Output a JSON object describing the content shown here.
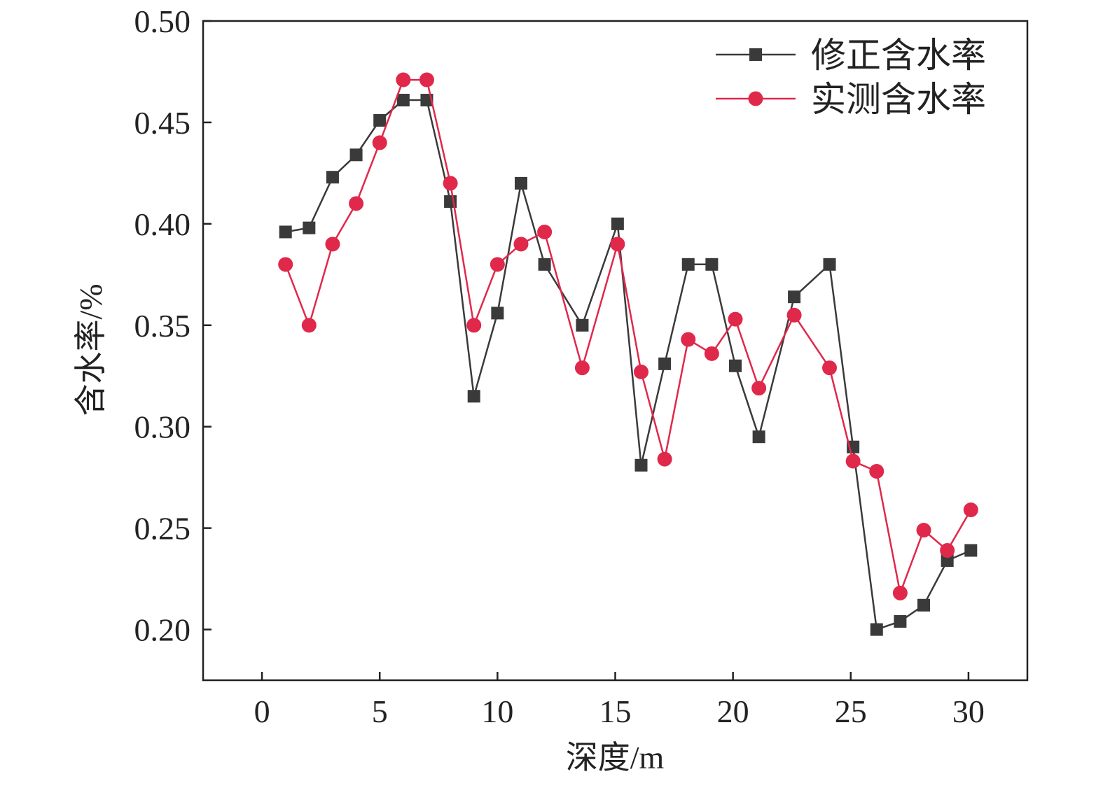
{
  "chart_data": {
    "type": "line",
    "xlabel": "深度/m",
    "ylabel": "含水率/%",
    "xlim": [
      -2.5,
      32.5
    ],
    "ylim": [
      0.175,
      0.5
    ],
    "xticks": [
      0,
      5,
      10,
      15,
      20,
      25,
      30
    ],
    "xtick_labels": [
      "0",
      "5",
      "10",
      "15",
      "20",
      "25",
      "30"
    ],
    "yticks": [
      0.2,
      0.25,
      0.3,
      0.35,
      0.4,
      0.45,
      0.5
    ],
    "ytick_labels": [
      "0.20",
      "0.25",
      "0.30",
      "0.35",
      "0.40",
      "0.45",
      "0.50"
    ],
    "grid": false,
    "legend_position": "top-right",
    "series": [
      {
        "name": "修正含水率",
        "color": "#3a3a3a",
        "marker": "square",
        "points": [
          [
            1,
            0.396
          ],
          [
            2,
            0.398
          ],
          [
            3,
            0.423
          ],
          [
            4,
            0.434
          ],
          [
            5,
            0.451
          ],
          [
            6,
            0.461
          ],
          [
            7,
            0.461
          ],
          [
            8,
            0.411
          ],
          [
            9,
            0.315
          ],
          [
            10,
            0.356
          ],
          [
            11,
            0.42
          ],
          [
            12,
            0.38
          ],
          [
            13.6,
            0.35
          ],
          [
            15.1,
            0.4
          ],
          [
            16.1,
            0.281
          ],
          [
            17.1,
            0.331
          ],
          [
            18.1,
            0.38
          ],
          [
            19.1,
            0.38
          ],
          [
            20.1,
            0.33
          ],
          [
            21.1,
            0.295
          ],
          [
            22.6,
            0.364
          ],
          [
            24.1,
            0.38
          ],
          [
            25.1,
            0.29
          ],
          [
            26.1,
            0.2
          ],
          [
            27.1,
            0.204
          ],
          [
            28.1,
            0.212
          ],
          [
            29.1,
            0.234
          ],
          [
            30.1,
            0.239
          ]
        ]
      },
      {
        "name": "实测含水率",
        "color": "#e0284a",
        "marker": "circle",
        "points": [
          [
            1,
            0.38
          ],
          [
            2,
            0.35
          ],
          [
            3,
            0.39
          ],
          [
            4,
            0.41
          ],
          [
            5,
            0.44
          ],
          [
            6,
            0.471
          ],
          [
            7,
            0.471
          ],
          [
            8,
            0.42
          ],
          [
            9,
            0.35
          ],
          [
            10,
            0.38
          ],
          [
            11,
            0.39
          ],
          [
            12,
            0.396
          ],
          [
            13.6,
            0.329
          ],
          [
            15.1,
            0.39
          ],
          [
            16.1,
            0.327
          ],
          [
            17.1,
            0.284
          ],
          [
            18.1,
            0.343
          ],
          [
            19.1,
            0.336
          ],
          [
            20.1,
            0.353
          ],
          [
            21.1,
            0.319
          ],
          [
            22.6,
            0.355
          ],
          [
            24.1,
            0.329
          ],
          [
            25.1,
            0.283
          ],
          [
            26.1,
            0.278
          ],
          [
            27.1,
            0.218
          ],
          [
            28.1,
            0.249
          ],
          [
            29.1,
            0.239
          ],
          [
            30.1,
            0.259
          ]
        ]
      }
    ]
  }
}
